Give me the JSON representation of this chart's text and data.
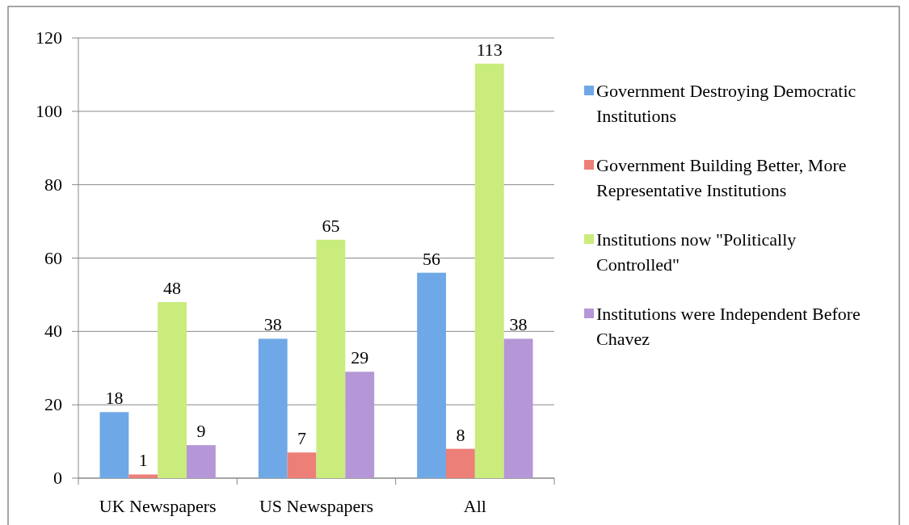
{
  "chart_data": {
    "type": "bar",
    "categories": [
      "UK Newspapers",
      "US Newspapers",
      "All"
    ],
    "series": [
      {
        "name": "Government Destroying Democratic Institutions",
        "color": "#6fa8e6",
        "values": [
          18,
          38,
          56
        ]
      },
      {
        "name": "Government Building Better, More Representative Institutions",
        "color": "#ec7f78",
        "values": [
          1,
          7,
          8
        ]
      },
      {
        "name": "Institutions now \"Politically Controlled\"",
        "color": "#c9ec7c",
        "values": [
          48,
          65,
          113
        ]
      },
      {
        "name": "Institutions were Independent Before Chavez",
        "color": "#b596d6",
        "values": [
          9,
          29,
          38
        ]
      }
    ],
    "ylim": [
      0,
      120
    ],
    "yticks": [
      0,
      20,
      40,
      60,
      80,
      100,
      120
    ],
    "grid": "y",
    "legend": "right",
    "data_labels": true
  }
}
